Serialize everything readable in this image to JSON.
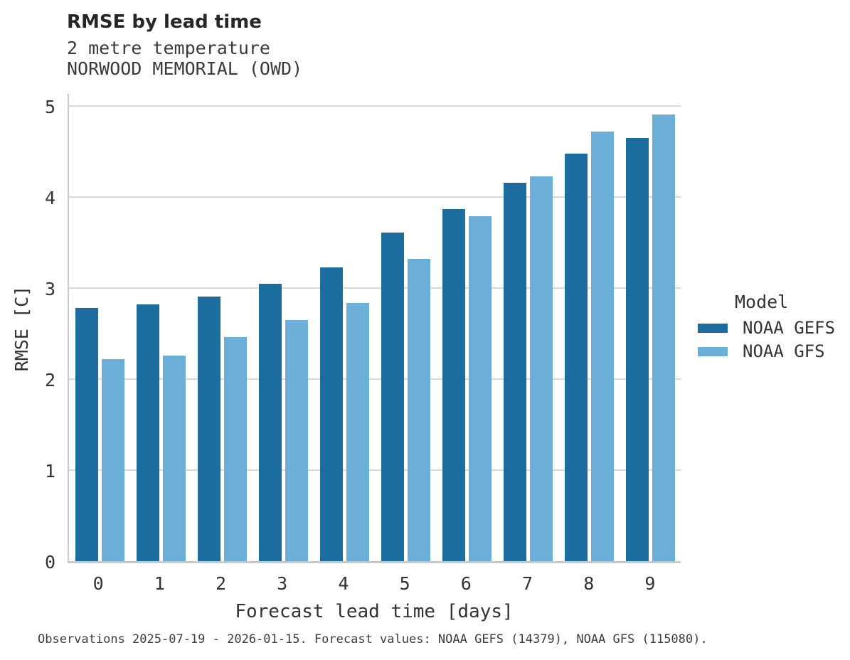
{
  "header": {
    "title": "RMSE by lead time",
    "subtitle_line1": "2 metre temperature",
    "subtitle_line2": "NORWOOD MEMORIAL (OWD)"
  },
  "chart_data": {
    "type": "bar",
    "title": "RMSE by lead time",
    "subtitle": [
      "2 metre temperature",
      "NORWOOD MEMORIAL (OWD)"
    ],
    "categories": [
      "0",
      "1",
      "2",
      "3",
      "4",
      "5",
      "6",
      "7",
      "8",
      "9"
    ],
    "series": [
      {
        "name": "NOAA GEFS",
        "color": "#1A6D9E",
        "values": [
          2.78,
          2.82,
          2.91,
          3.05,
          3.23,
          3.61,
          3.87,
          4.16,
          4.48,
          4.65
        ]
      },
      {
        "name": "NOAA GFS",
        "color": "#6BAFD8",
        "values": [
          2.22,
          2.26,
          2.46,
          2.65,
          2.84,
          3.32,
          3.79,
          4.23,
          4.72,
          4.91
        ]
      }
    ],
    "xlabel": "Forecast lead time [days]",
    "ylabel": "RMSE [C]",
    "ylim": [
      0,
      5.16
    ],
    "yticks": [
      0,
      1,
      2,
      3,
      4,
      5
    ],
    "grid": true,
    "legend_title": "Model",
    "legend_position": "right"
  },
  "legend": {
    "title": "Model",
    "items": [
      {
        "label": "NOAA GEFS",
        "color": "#1A6D9E"
      },
      {
        "label": "NOAA GFS",
        "color": "#6BAFD8"
      }
    ]
  },
  "caption": "Observations 2025-07-19 - 2026-01-15. Forecast values: NOAA GEFS (14379), NOAA GFS (115080).",
  "colors": {
    "bar_dark": "#1A6D9E",
    "bar_light": "#6BAFD8",
    "gridline": "#D9D9D9",
    "axis_spine": "#C9C9C9",
    "title_text": "#262626",
    "body_text": "#333333"
  }
}
